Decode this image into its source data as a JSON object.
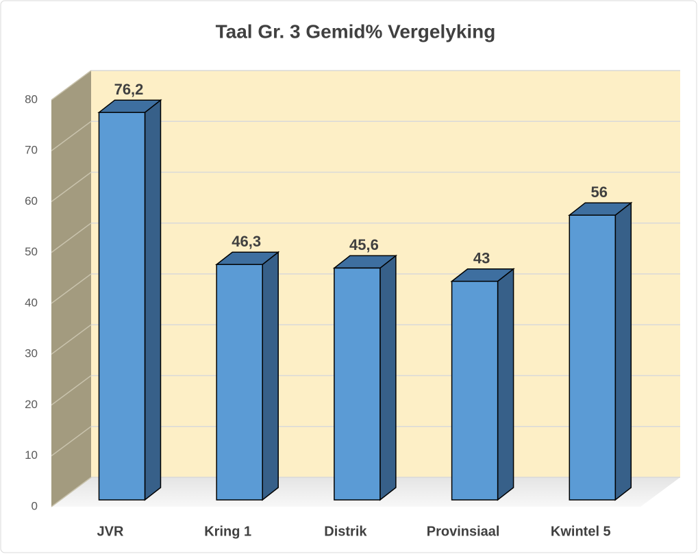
{
  "chart_data": {
    "type": "bar3d",
    "title": "Taal Gr. 3 Gemid% Vergelyking",
    "categories": [
      "JVR",
      "Kring 1",
      "Distrik",
      "Provinsiaal",
      "Kwintel 5"
    ],
    "values": [
      76.2,
      46.3,
      45.6,
      43,
      56
    ],
    "value_labels": [
      "76,2",
      "46,3",
      "45,6",
      "43",
      "56"
    ],
    "color": "#5b9bd5",
    "ylim": [
      0,
      80
    ],
    "yticks": [
      0,
      10,
      20,
      30,
      40,
      50,
      60,
      70,
      80
    ],
    "grid": true
  }
}
